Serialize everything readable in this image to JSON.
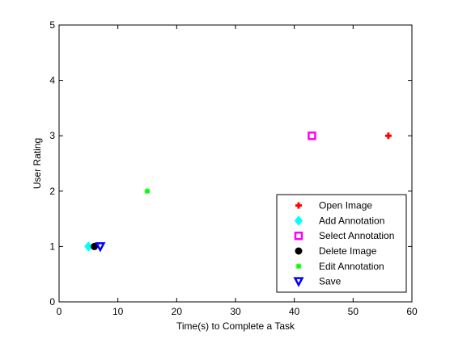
{
  "chart_data": {
    "type": "scatter",
    "title": "",
    "xlabel": "Time(s) to Complete a Task",
    "ylabel": "User Rating",
    "xlim": [
      0,
      60
    ],
    "ylim": [
      0,
      5
    ],
    "xticks": [
      "0",
      "10",
      "20",
      "30",
      "40",
      "50",
      "60"
    ],
    "yticks": [
      "0",
      "1",
      "2",
      "3",
      "4",
      "5"
    ],
    "grid": false,
    "legend_position": "bottom-right",
    "series": [
      {
        "name": "Open Image",
        "marker": "plus",
        "color": "#ff0000",
        "points": [
          {
            "x": 56,
            "y": 3
          }
        ]
      },
      {
        "name": "Add Annotation",
        "marker": "diamond",
        "color": "#00ffff",
        "points": [
          {
            "x": 5,
            "y": 1
          }
        ]
      },
      {
        "name": "Select Annotation",
        "marker": "square",
        "color": "#ff00ff",
        "points": [
          {
            "x": 43,
            "y": 3
          }
        ]
      },
      {
        "name": "Delete Image",
        "marker": "circle",
        "color": "#000000",
        "points": [
          {
            "x": 6,
            "y": 1
          }
        ]
      },
      {
        "name": "Edit Annotation",
        "marker": "asterisk",
        "color": "#00ff00",
        "points": [
          {
            "x": 15,
            "y": 2
          }
        ]
      },
      {
        "name": "Save",
        "marker": "triangle-down",
        "color": "#0000ff",
        "points": [
          {
            "x": 7,
            "y": 1
          }
        ]
      }
    ]
  }
}
